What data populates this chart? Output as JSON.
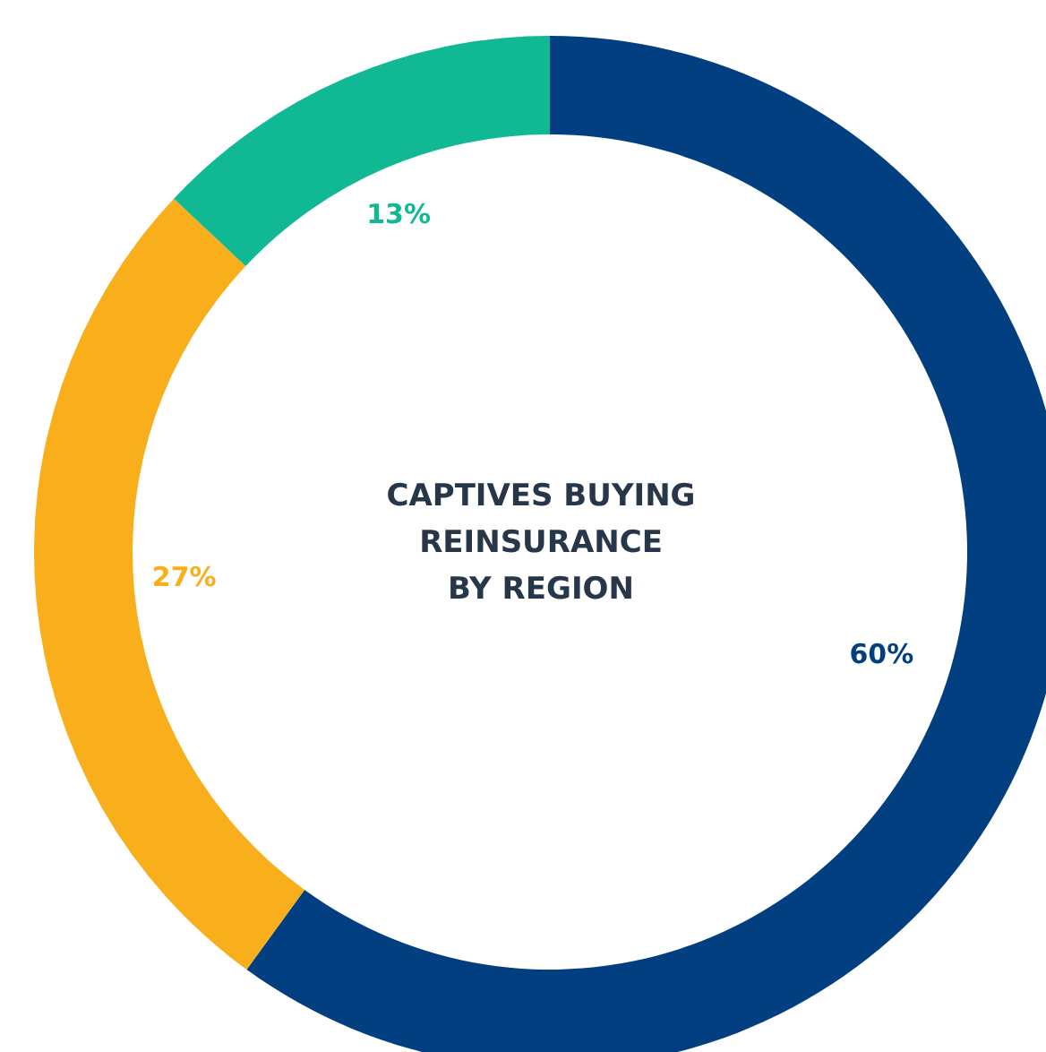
{
  "chart_data": {
    "type": "donut",
    "title": "CAPTIVES BUYING\nREINSURANCE\nBY REGION",
    "categories": [
      null,
      null,
      null
    ],
    "values": [
      60,
      27,
      13
    ],
    "value_labels": [
      "60%",
      "27%",
      "13%"
    ],
    "colors": [
      "#023f80",
      "#f9ae1b",
      "#10b994"
    ],
    "legend": false
  }
}
